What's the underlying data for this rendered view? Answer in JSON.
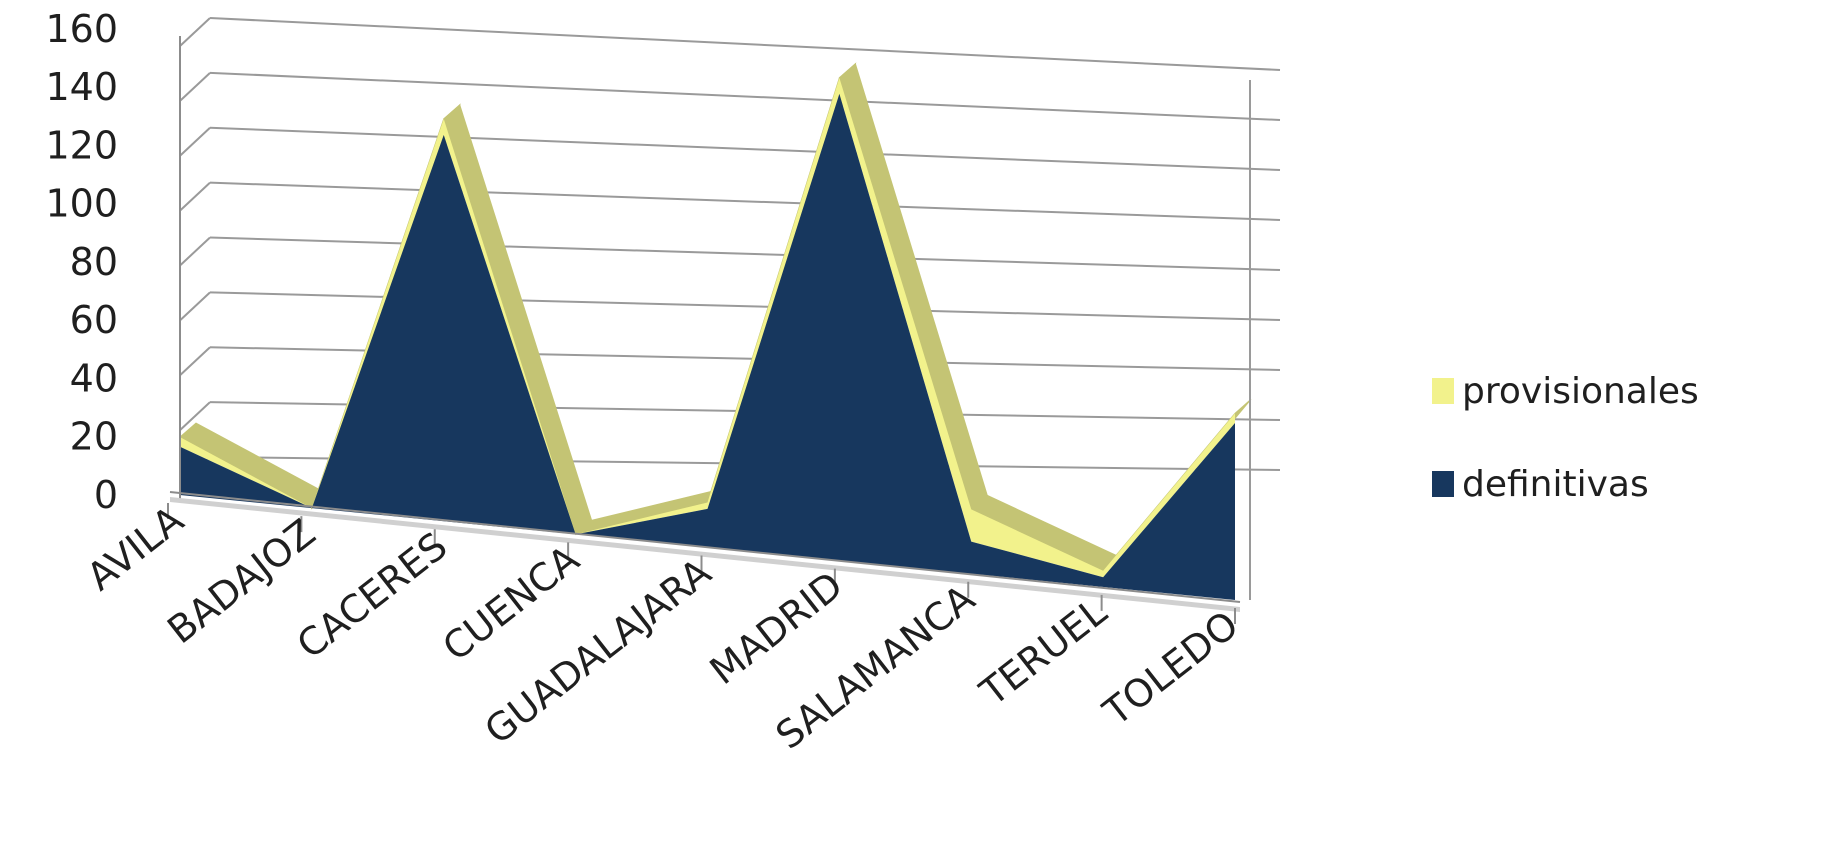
{
  "chart_data": {
    "type": "area",
    "view": "3d-perspective",
    "categories": [
      "AVILA",
      "BADAJOZ",
      "CACERES",
      "CUENCA",
      "GUADALAJARA",
      "MADRID",
      "SALAMANCA",
      "TERUEL",
      "TOLEDO"
    ],
    "series": [
      {
        "name": "definitivas",
        "values": [
          15,
          0,
          120,
          0,
          12,
          145,
          10,
          3,
          55
        ],
        "color": "#17375e"
      },
      {
        "name": "provisionales",
        "values": [
          3,
          0,
          5,
          0,
          2,
          5,
          10,
          2,
          3
        ],
        "color": "#f2f28c",
        "edge_color": "#c4c474"
      }
    ],
    "stacked": true,
    "yticks": [
      0,
      20,
      40,
      60,
      80,
      100,
      120,
      140,
      160
    ],
    "ylim": [
      0,
      160
    ],
    "grid": true,
    "legend_position": "right"
  }
}
